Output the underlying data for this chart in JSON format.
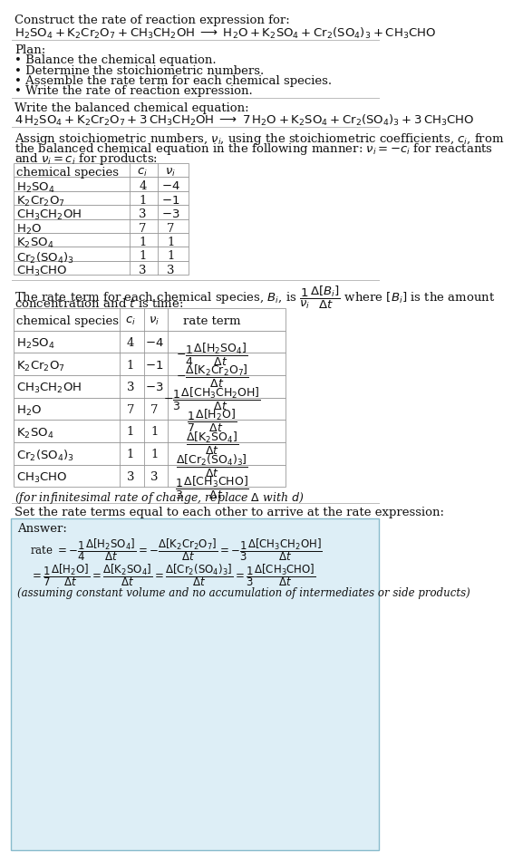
{
  "bg_color": "#ffffff",
  "answer_bg_color": "#ddeef6",
  "title_line1": "Construct the rate of reaction expression for:",
  "title_eq": "$\\mathrm{H_2SO_4 + K_2Cr_2O_7 + CH_3CH_2OH \\;\\longrightarrow\\; H_2O + K_2SO_4 + Cr_2(SO_4)_3 + CH_3CHO}$",
  "plan_header": "Plan:",
  "plan_items": [
    "• Balance the chemical equation.",
    "• Determine the stoichiometric numbers.",
    "• Assemble the rate term for each chemical species.",
    "• Write the rate of reaction expression."
  ],
  "balanced_header": "Write the balanced chemical equation:",
  "balanced_eq": "$\\mathrm{4\\,H_2SO_4 + K_2Cr_2O_7 + 3\\,CH_3CH_2OH \\;\\longrightarrow\\; 7\\,H_2O + K_2SO_4 + Cr_2(SO_4)_3 + 3\\,CH_3CHO}$",
  "assign_text1": "Assign stoichiometric numbers, $\\nu_i$, using the stoichiometric coefficients, $c_i$, from",
  "assign_text2": "the balanced chemical equation in the following manner: $\\nu_i = -c_i$ for reactants",
  "assign_text3": "and $\\nu_i = c_i$ for products:",
  "table1_headers": [
    "chemical species",
    "$c_i$",
    "$\\nu_i$"
  ],
  "table1_col_species": [
    "$\\mathrm{H_2SO_4}$",
    "$\\mathrm{K_2Cr_2O_7}$",
    "$\\mathrm{CH_3CH_2OH}$",
    "$\\mathrm{H_2O}$",
    "$\\mathrm{K_2SO_4}$",
    "$\\mathrm{Cr_2(SO_4)_3}$",
    "$\\mathrm{CH_3CHO}$"
  ],
  "table1_col_ci": [
    "4",
    "1",
    "3",
    "7",
    "1",
    "1",
    "3"
  ],
  "table1_col_vi": [
    "$-4$",
    "$-1$",
    "$-3$",
    "7",
    "1",
    "1",
    "3"
  ],
  "rate_text1": "The rate term for each chemical species, $B_i$, is $\\dfrac{1}{\\nu_i}\\dfrac{\\Delta[B_i]}{\\Delta t}$ where $[B_i]$ is the amount",
  "rate_text2": "concentration and $t$ is time:",
  "table2_headers": [
    "chemical species",
    "$c_i$",
    "$\\nu_i$",
    "rate term"
  ],
  "table2_col_species": [
    "$\\mathrm{H_2SO_4}$",
    "$\\mathrm{K_2Cr_2O_7}$",
    "$\\mathrm{CH_3CH_2OH}$",
    "$\\mathrm{H_2O}$",
    "$\\mathrm{K_2SO_4}$",
    "$\\mathrm{Cr_2(SO_4)_3}$",
    "$\\mathrm{CH_3CHO}$"
  ],
  "table2_col_ci": [
    "4",
    "1",
    "3",
    "7",
    "1",
    "1",
    "3"
  ],
  "table2_col_vi": [
    "$-4$",
    "$-1$",
    "$-3$",
    "7",
    "1",
    "1",
    "3"
  ],
  "table2_col_rate": [
    "$-\\dfrac{1}{4}\\dfrac{\\Delta[\\mathrm{H_2SO_4}]}{\\Delta t}$",
    "$-\\dfrac{\\Delta[\\mathrm{K_2Cr_2O_7}]}{\\Delta t}$",
    "$-\\dfrac{1}{3}\\dfrac{\\Delta[\\mathrm{CH_3CH_2OH}]}{\\Delta t}$",
    "$\\dfrac{1}{7}\\dfrac{\\Delta[\\mathrm{H_2O}]}{\\Delta t}$",
    "$\\dfrac{\\Delta[\\mathrm{K_2SO_4}]}{\\Delta t}$",
    "$\\dfrac{\\Delta[\\mathrm{Cr_2(SO_4)_3}]}{\\Delta t}$",
    "$\\dfrac{1}{3}\\dfrac{\\Delta[\\mathrm{CH_3CHO}]}{\\Delta t}$"
  ],
  "infinitesimal_note": "(for infinitesimal rate of change, replace $\\Delta$ with $d$)",
  "set_rate_text": "Set the rate terms equal to each other to arrive at the rate expression:",
  "answer_label": "Answer:",
  "answer_indent": "    ",
  "answer_line1a": "rate $= -\\dfrac{1}{4}\\dfrac{\\Delta[\\mathrm{H_2SO_4}]}{\\Delta t}$",
  "answer_line1b": "$= -\\dfrac{\\Delta[\\mathrm{K_2Cr_2O_7}]}{\\Delta t}$",
  "answer_line1c": "$= -\\dfrac{1}{3}\\dfrac{\\Delta[\\mathrm{CH_3CH_2OH}]}{\\Delta t}$",
  "answer_line2a": "$= \\dfrac{1}{7}\\dfrac{\\Delta[\\mathrm{H_2O}]}{\\Delta t}$",
  "answer_line2b": "$= \\dfrac{\\Delta[\\mathrm{K_2SO_4}]}{\\Delta t}$",
  "answer_line2c": "$= \\dfrac{\\Delta[\\mathrm{Cr_2(SO_4)_3}]}{\\Delta t}$",
  "answer_line2d": "$= \\dfrac{1}{3}\\dfrac{\\Delta[\\mathrm{CH_3CHO}]}{\\Delta t}$",
  "answer_note": "(assuming constant volume and no accumulation of intermediates or side products)"
}
